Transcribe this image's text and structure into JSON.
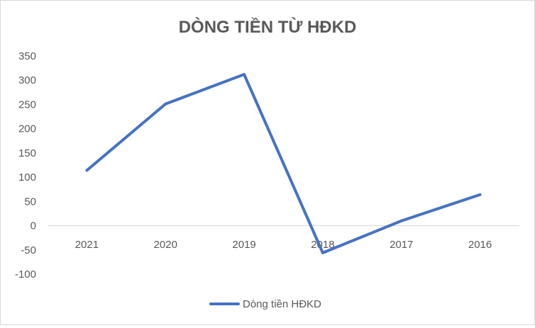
{
  "chart_data": {
    "type": "line",
    "title": "DÒNG TIỀN TỪ HĐKD",
    "categories": [
      "2021",
      "2020",
      "2019",
      "2018",
      "2017",
      "2016"
    ],
    "series": [
      {
        "name": "Dòng tiền HĐKD",
        "values": [
          114,
          251,
          312,
          -56,
          10,
          64
        ],
        "color": "#4472c4"
      }
    ],
    "ylim": [
      -100,
      350
    ],
    "yticks": [
      "350",
      "300",
      "250",
      "200",
      "150",
      "100",
      "50",
      "0",
      "-50",
      "-100"
    ],
    "xlabel": "",
    "ylabel": "",
    "grid": false,
    "legend_position": "bottom"
  }
}
